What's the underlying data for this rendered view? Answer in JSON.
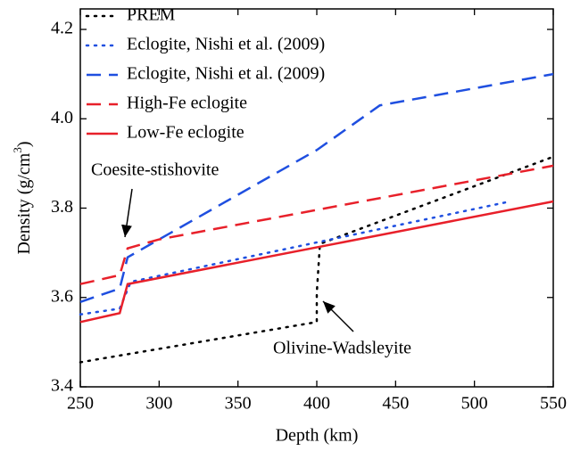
{
  "chart_data": {
    "type": "line",
    "x_label": "Depth (km)",
    "y_label": "Density (g/cm",
    "y_label_sup": "3",
    "y_label_end": ")",
    "xlim": [
      250,
      550
    ],
    "ylim": [
      3.4,
      4.2
    ],
    "xticks": [
      250,
      300,
      350,
      400,
      450,
      500,
      550
    ],
    "yticks": [
      3.4,
      3.6,
      3.8,
      {
        "value": 4,
        "label": "4.0"
      },
      4.2
    ],
    "legend": "upper left",
    "series": [
      {
        "name": "PREM",
        "color": "#000000",
        "style": "dotted",
        "x": [
          250,
          400,
          400,
          402,
          550
        ],
        "values": [
          3.455,
          3.545,
          3.61,
          3.72,
          3.915
        ]
      },
      {
        "name": "Eclogite, Nishi et al. (2009)",
        "color": "#1f4fe0",
        "style": "dotted",
        "x": [
          250,
          275,
          282,
          520
        ],
        "values": [
          3.562,
          3.575,
          3.635,
          3.813
        ]
      },
      {
        "name": "Eclogite, Nishi et al. (2009)",
        "color": "#1f4fe0",
        "style": "dashed",
        "x": [
          250,
          275,
          280,
          300,
          400,
          440,
          550
        ],
        "values": [
          3.59,
          3.62,
          3.69,
          3.73,
          3.93,
          4.03,
          4.1
        ]
      },
      {
        "name": "High-Fe eclogite",
        "color": "#e8202a",
        "style": "dashed",
        "x": [
          250,
          275,
          280,
          300,
          550
        ],
        "values": [
          3.63,
          3.65,
          3.71,
          3.73,
          3.895
        ]
      },
      {
        "name": "Low-Fe eclogite",
        "color": "#e8202a",
        "style": "solid",
        "x": [
          250,
          275,
          280,
          550
        ],
        "values": [
          3.545,
          3.565,
          3.63,
          3.815
        ]
      }
    ],
    "annotations": [
      "Coesite-stishovite",
      "Olivine-Wadsleyite"
    ]
  }
}
